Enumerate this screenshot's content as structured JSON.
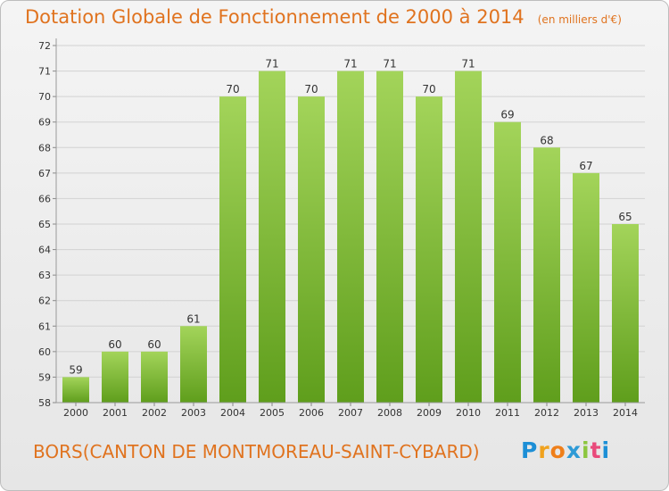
{
  "title": "Dotation Globale de Fonctionnement de 2000 à 2014",
  "unit": "(en milliers d'€)",
  "place": "BORS(CANTON DE MONTMOREAU-SAINT-CYBARD)",
  "brand": {
    "letters": [
      "P",
      "r",
      "o",
      "x",
      "i",
      "t",
      "i"
    ],
    "colors": [
      "#1d8fd6",
      "#f0a21e",
      "#ef7f1a",
      "#2d9ad6",
      "#8cc63f",
      "#e94a7b",
      "#1d8fd6"
    ]
  },
  "colors": {
    "title": "#e0731f",
    "bar_light": "#a3d45a",
    "bar_dark": "#5f9e1c",
    "grid": "#d2d2d2"
  },
  "chart_data": {
    "type": "bar",
    "categories": [
      "2000",
      "2001",
      "2002",
      "2003",
      "2004",
      "2005",
      "2006",
      "2007",
      "2008",
      "2009",
      "2010",
      "2011",
      "2012",
      "2013",
      "2014"
    ],
    "values": [
      59,
      60,
      60,
      61,
      70,
      71,
      70,
      71,
      71,
      70,
      71,
      69,
      68,
      67,
      65
    ],
    "ylim": [
      58,
      72
    ],
    "yticks": [
      58,
      59,
      60,
      61,
      62,
      63,
      64,
      65,
      66,
      67,
      68,
      69,
      70,
      71,
      72
    ],
    "grid": true,
    "legend": "none"
  }
}
